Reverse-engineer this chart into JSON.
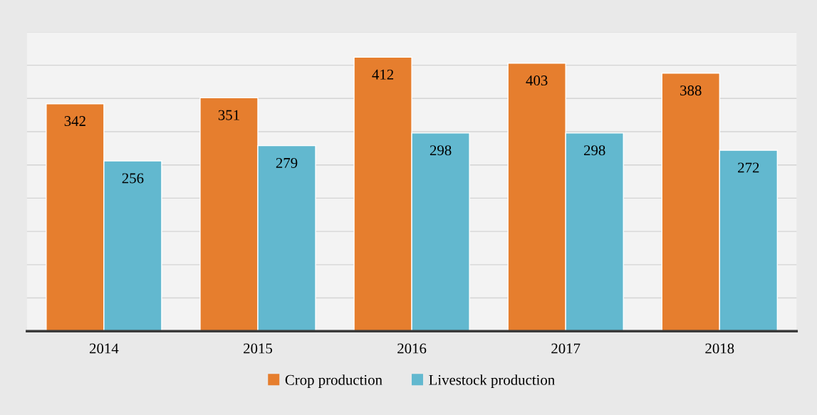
{
  "chart_data": {
    "type": "bar",
    "categories": [
      "2014",
      "2015",
      "2016",
      "2017",
      "2018"
    ],
    "series": [
      {
        "name": "Crop production",
        "color": "#e67e2e",
        "values": [
          342,
          351,
          412,
          403,
          388
        ]
      },
      {
        "name": "Livestock production",
        "color": "#62b8cf",
        "values": [
          256,
          279,
          298,
          298,
          272
        ]
      }
    ],
    "ylim": [
      0,
      450
    ],
    "yticks": [
      {
        "value": 0,
        "label": null
      },
      {
        "value": 50,
        "label": null
      },
      {
        "value": 100,
        "label": null
      },
      {
        "value": 150,
        "label": null
      },
      {
        "value": 200,
        "label": null
      },
      {
        "value": 250,
        "label": null
      },
      {
        "value": 300,
        "label": null
      },
      {
        "value": 350,
        "label": null
      },
      {
        "value": 400,
        "label": null
      },
      {
        "value": 450,
        "label": null
      }
    ],
    "tick_labels": "x",
    "grid": "y",
    "legend": "bottom",
    "data_labels": true
  }
}
